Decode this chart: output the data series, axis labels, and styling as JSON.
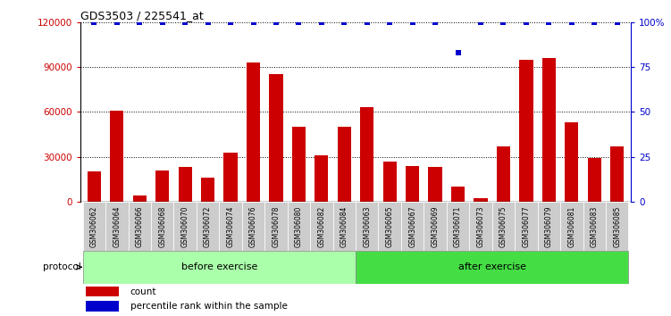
{
  "title": "GDS3503 / 225541_at",
  "categories": [
    "GSM306062",
    "GSM306064",
    "GSM306066",
    "GSM306068",
    "GSM306070",
    "GSM306072",
    "GSM306074",
    "GSM306076",
    "GSM306078",
    "GSM306080",
    "GSM306082",
    "GSM306084",
    "GSM306063",
    "GSM306065",
    "GSM306067",
    "GSM306069",
    "GSM306071",
    "GSM306073",
    "GSM306075",
    "GSM306077",
    "GSM306079",
    "GSM306081",
    "GSM306083",
    "GSM306085"
  ],
  "counts": [
    20000,
    61000,
    4000,
    21000,
    23000,
    16000,
    33000,
    93000,
    85000,
    50000,
    31000,
    50000,
    63000,
    27000,
    24000,
    23000,
    10000,
    2500,
    37000,
    95000,
    96000,
    53000,
    29000,
    37000
  ],
  "percentile": [
    100,
    100,
    100,
    100,
    100,
    100,
    100,
    100,
    100,
    100,
    100,
    100,
    100,
    100,
    100,
    100,
    83,
    100,
    100,
    100,
    100,
    100,
    100,
    100
  ],
  "before_count": 12,
  "after_count": 12,
  "bar_color": "#cc0000",
  "percentile_color": "#0000cc",
  "left_yticks": [
    0,
    30000,
    60000,
    90000,
    120000
  ],
  "right_yticks": [
    0,
    25,
    50,
    75,
    100
  ],
  "right_yticklabels": [
    "0",
    "25",
    "50",
    "75",
    "100%"
  ],
  "ymax": 120000,
  "before_label": "before exercise",
  "after_label": "after exercise",
  "protocol_label": "protocol",
  "legend_count_label": "count",
  "legend_percentile_label": "percentile rank within the sample",
  "before_bg": "#aaffaa",
  "after_bg": "#44dd44",
  "xticklabel_bg": "#cccccc",
  "bg_color": "#ffffff"
}
